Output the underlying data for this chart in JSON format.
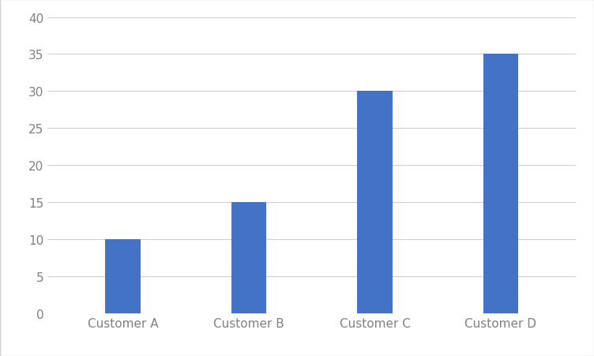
{
  "categories": [
    "Customer A",
    "Customer B",
    "Customer C",
    "Customer D"
  ],
  "values": [
    10,
    15,
    30,
    35
  ],
  "bar_color": "#4472c4",
  "ylim": [
    0,
    40
  ],
  "yticks": [
    0,
    5,
    10,
    15,
    20,
    25,
    30,
    35,
    40
  ],
  "background_color": "#ffffff",
  "grid_color": "#d0d0d0",
  "tick_label_fontsize": 11,
  "tick_label_color": "#808080",
  "bar_width": 0.28,
  "border_color": "#d0d0d0"
}
